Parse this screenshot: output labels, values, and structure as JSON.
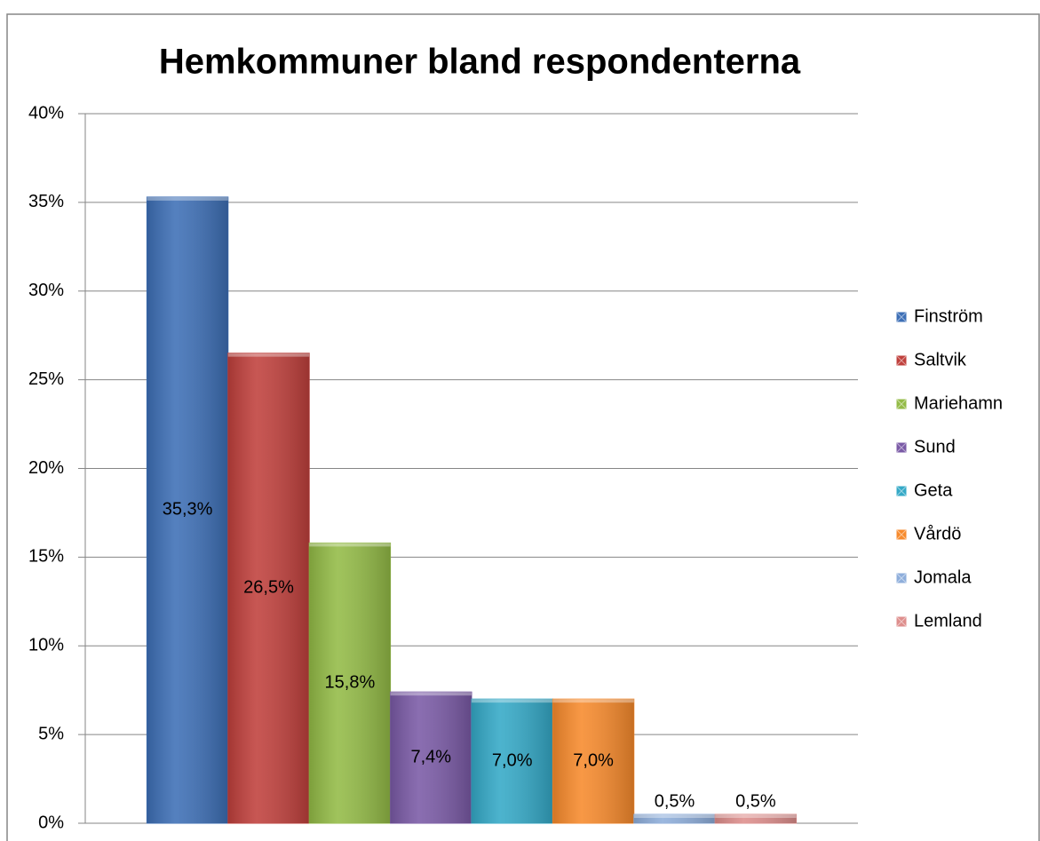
{
  "chart_data": {
    "type": "bar",
    "title": "Hemkommuner bland respondenterna",
    "series": [
      {
        "name": "Finström",
        "color": "#3d6fb6",
        "values": [
          35.3
        ],
        "value_labels": [
          "35,3%"
        ]
      },
      {
        "name": "Saltvik",
        "color": "#c0403c",
        "values": [
          26.5
        ],
        "value_labels": [
          "26,5%"
        ]
      },
      {
        "name": "Mariehamn",
        "color": "#93bb46",
        "values": [
          15.8
        ],
        "value_labels": [
          "15,8%"
        ]
      },
      {
        "name": "Sund",
        "color": "#7a5aa6",
        "values": [
          7.4
        ],
        "value_labels": [
          "7,4%"
        ]
      },
      {
        "name": "Geta",
        "color": "#34a9c7",
        "values": [
          7.0
        ],
        "value_labels": [
          "7,0%"
        ]
      },
      {
        "name": "Vårdö",
        "color": "#f78a2c",
        "values": [
          7.0
        ],
        "value_labels": [
          "7,0%"
        ]
      },
      {
        "name": "Jomala",
        "color": "#8eaedb",
        "values": [
          0.5
        ],
        "value_labels": [
          "0,5%"
        ]
      },
      {
        "name": "Lemland",
        "color": "#de8e8c",
        "values": [
          0.5
        ],
        "value_labels": [
          "0,5%"
        ]
      }
    ],
    "ylim": [
      0,
      40
    ],
    "yticks": [
      {
        "value": 0,
        "label": "0%"
      },
      {
        "value": 5,
        "label": "5%"
      },
      {
        "value": 10,
        "label": "10%"
      },
      {
        "value": 15,
        "label": "15%"
      },
      {
        "value": 20,
        "label": "20%"
      },
      {
        "value": 25,
        "label": "25%"
      },
      {
        "value": 30,
        "label": "30%"
      },
      {
        "value": 35,
        "label": "35%"
      },
      {
        "value": 40,
        "label": "40%"
      }
    ],
    "grid": true,
    "legend": "right"
  }
}
